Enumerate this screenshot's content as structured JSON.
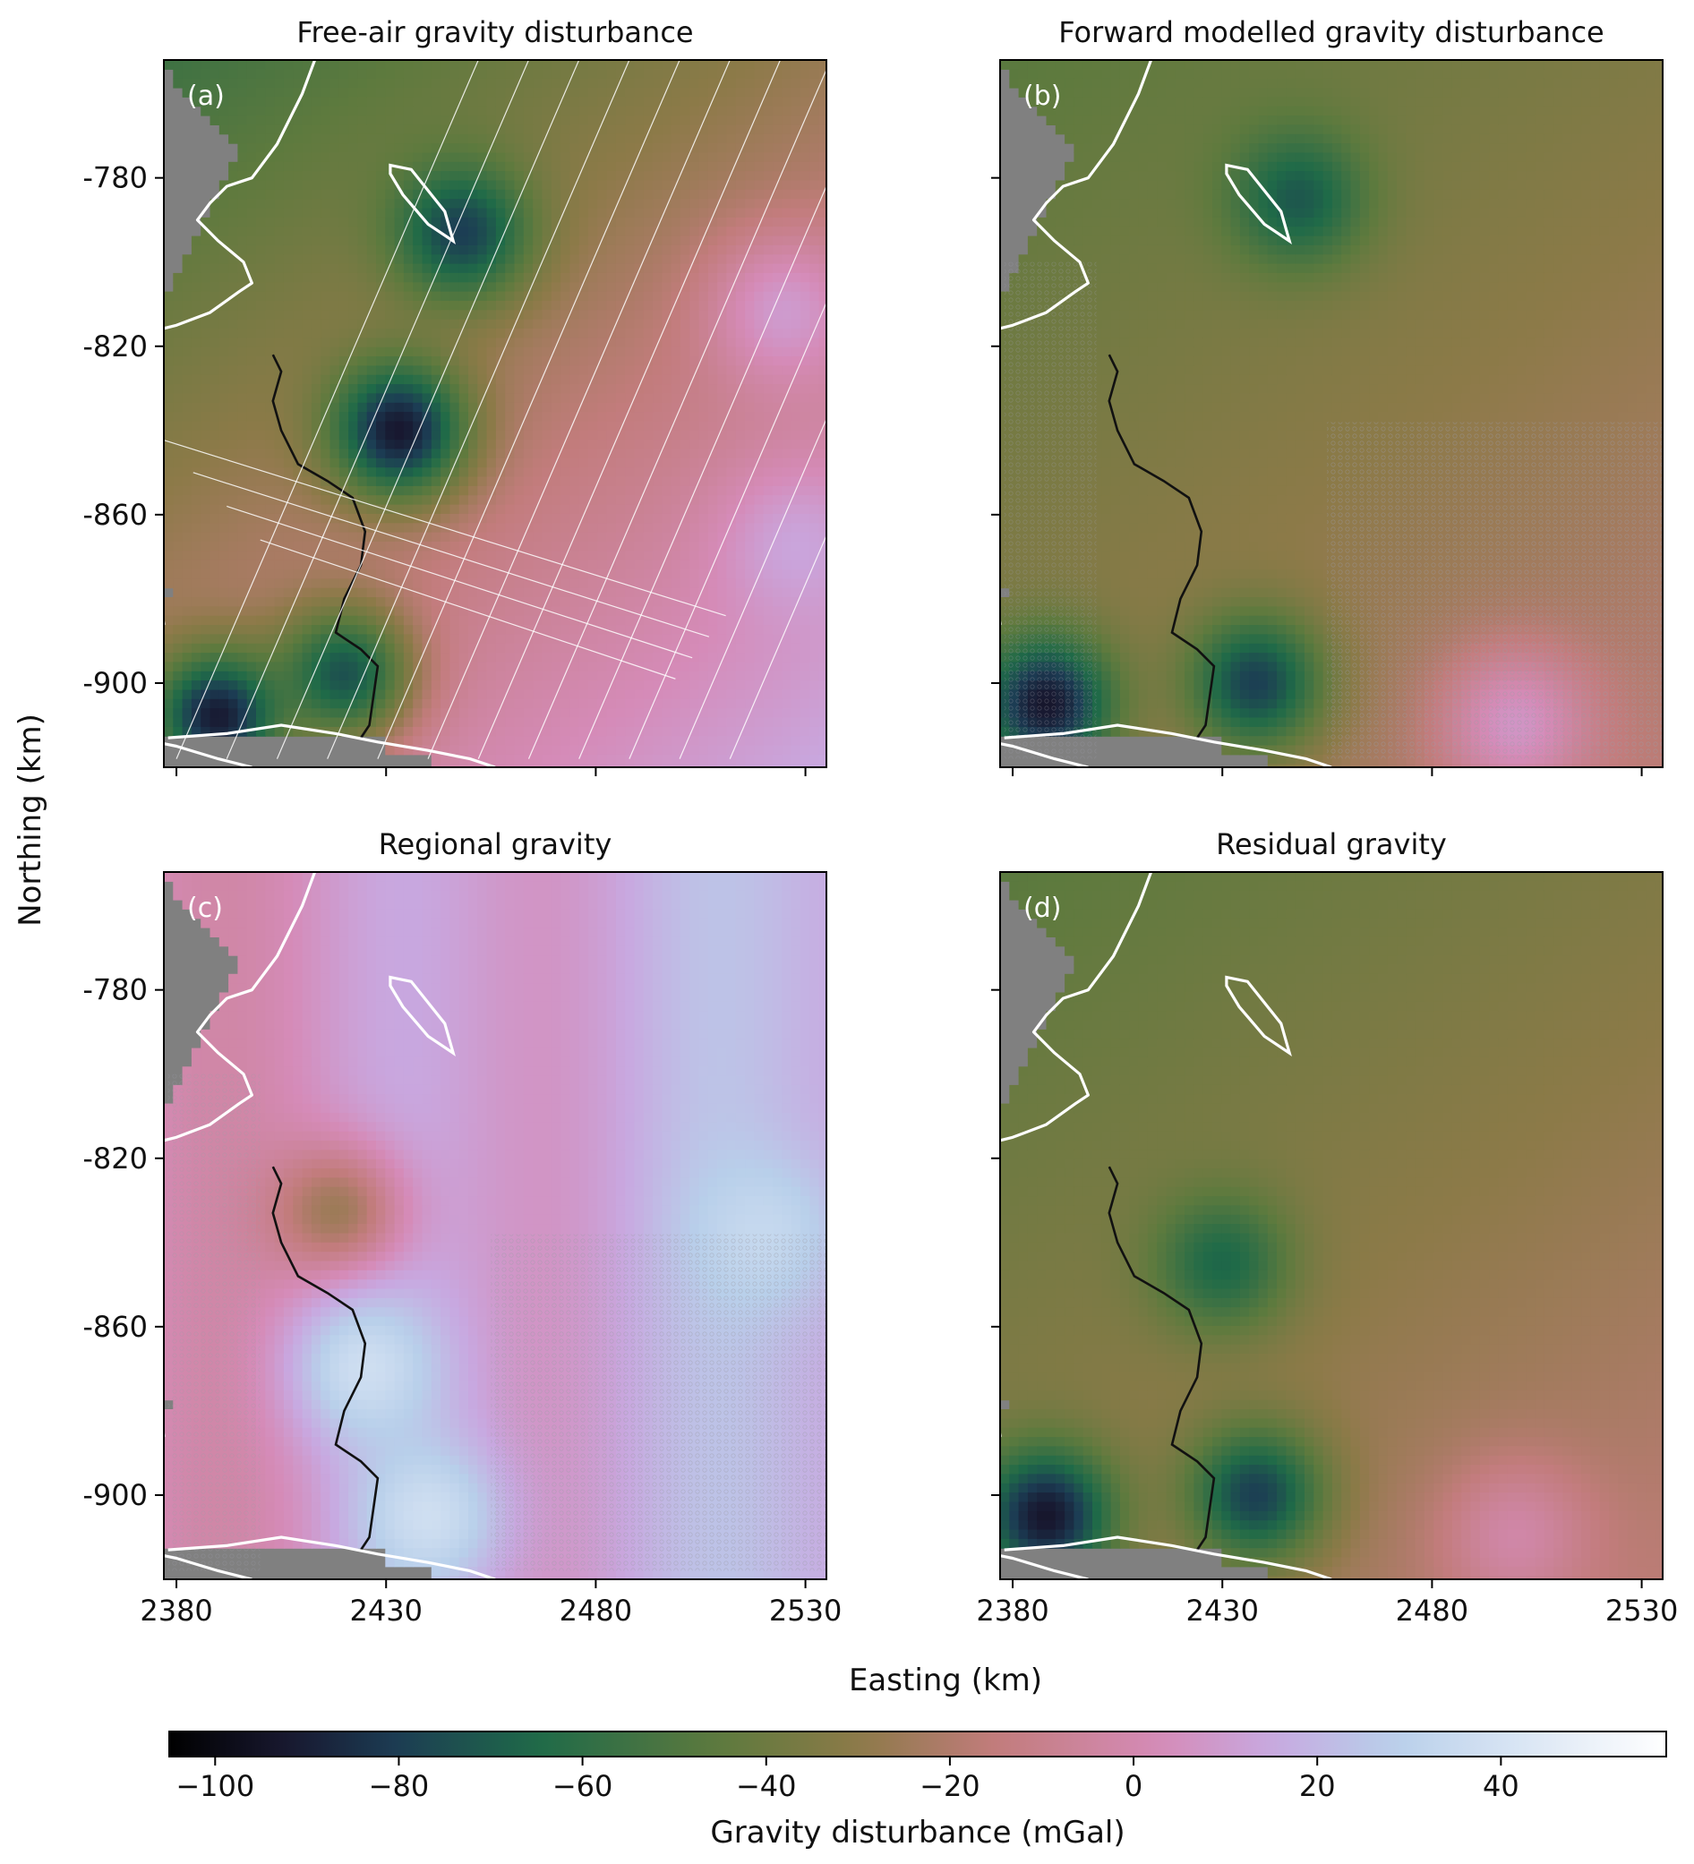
{
  "figure": {
    "shared_xlabel": "Easting (km)",
    "shared_ylabel": "Northing (km)",
    "colorbar": {
      "label": "Gravity disturbance (mGal)",
      "range": [
        -105,
        58
      ],
      "ticks": [
        "−100",
        "−80",
        "−60",
        "−40",
        "−20",
        "0",
        "20",
        "40"
      ],
      "tick_values": [
        -100,
        -80,
        -60,
        -40,
        -20,
        0,
        20,
        40
      ],
      "colormap_stops": [
        "#000000",
        "#181830",
        "#1c3d54",
        "#1f6a48",
        "#5e7a3e",
        "#8c7a48",
        "#c27c7c",
        "#d58bb8",
        "#c8a8e0",
        "#b8cfea",
        "#ffffff"
      ]
    }
  },
  "chart_data": [
    {
      "type": "heatmap",
      "title": "Free-air gravity disturbance",
      "panel_label": "(a)",
      "xlim": [
        2377,
        2535
      ],
      "ylim": [
        -920,
        -752
      ],
      "x_ticks": [
        "2380",
        "2430",
        "2480",
        "2530"
      ],
      "x_tick_values": [
        2380,
        2430,
        2480,
        2530
      ],
      "y_ticks": [
        "-780",
        "-820",
        "-860",
        "-900"
      ],
      "y_tick_values": [
        -780,
        -820,
        -860,
        -900
      ],
      "show_x_tick_labels": false,
      "show_y_tick_labels": true,
      "lows": [
        {
          "x": 2433,
          "y": -840,
          "value": -100
        },
        {
          "x": 2390,
          "y": -908,
          "value": -100
        },
        {
          "x": 2448,
          "y": -793,
          "value": -85
        },
        {
          "x": 2420,
          "y": -898,
          "value": -80
        }
      ],
      "highs": [
        {
          "x": 2528,
          "y": -868,
          "value": 15
        },
        {
          "x": 2525,
          "y": -812,
          "value": 12
        }
      ],
      "flight_lines": true,
      "data_points_overlay": false
    },
    {
      "type": "heatmap",
      "title": "Forward modelled gravity disturbance",
      "panel_label": "(b)",
      "xlim": [
        2377,
        2535
      ],
      "ylim": [
        -920,
        -752
      ],
      "x_ticks": [
        "2380",
        "2430",
        "2480",
        "2530"
      ],
      "x_tick_values": [
        2380,
        2430,
        2480,
        2530
      ],
      "y_ticks": [
        "-780",
        "-820",
        "-860",
        "-900"
      ],
      "y_tick_values": [
        -780,
        -820,
        -860,
        -900
      ],
      "show_x_tick_labels": false,
      "show_y_tick_labels": false,
      "lows": [
        {
          "x": 2388,
          "y": -905,
          "value": -100
        },
        {
          "x": 2438,
          "y": -900,
          "value": -85
        },
        {
          "x": 2448,
          "y": -785,
          "value": -75
        }
      ],
      "highs": [
        {
          "x": 2500,
          "y": -910,
          "value": 10
        }
      ],
      "flight_lines": false,
      "data_points_overlay": true
    },
    {
      "type": "heatmap",
      "title": "Regional gravity",
      "panel_label": "(c)",
      "xlim": [
        2377,
        2535
      ],
      "ylim": [
        -920,
        -752
      ],
      "x_ticks": [
        "2380",
        "2430",
        "2480",
        "2530"
      ],
      "x_tick_values": [
        2380,
        2430,
        2480,
        2530
      ],
      "y_ticks": [
        "-780",
        "-820",
        "-860",
        "-900"
      ],
      "y_tick_values": [
        -780,
        -820,
        -860,
        -900
      ],
      "show_x_tick_labels": true,
      "show_y_tick_labels": true,
      "lows": [
        {
          "x": 2418,
          "y": -833,
          "value": -30
        }
      ],
      "highs": [
        {
          "x": 2425,
          "y": -870,
          "value": 40
        },
        {
          "x": 2520,
          "y": -838,
          "value": 35
        },
        {
          "x": 2440,
          "y": -905,
          "value": 40
        }
      ],
      "flight_lines": false,
      "data_points_overlay": true
    },
    {
      "type": "heatmap",
      "title": "Residual gravity",
      "panel_label": "(d)",
      "xlim": [
        2377,
        2535
      ],
      "ylim": [
        -920,
        -752
      ],
      "x_ticks": [
        "2380",
        "2430",
        "2480",
        "2530"
      ],
      "x_tick_values": [
        2380,
        2430,
        2480,
        2530
      ],
      "y_ticks": [
        "-780",
        "-820",
        "-860",
        "-900"
      ],
      "y_tick_values": [
        -780,
        -820,
        -860,
        -900
      ],
      "show_x_tick_labels": true,
      "show_y_tick_labels": false,
      "lows": [
        {
          "x": 2388,
          "y": -905,
          "value": -100
        },
        {
          "x": 2438,
          "y": -900,
          "value": -85
        },
        {
          "x": 2430,
          "y": -845,
          "value": -70
        }
      ],
      "highs": [
        {
          "x": 2500,
          "y": -910,
          "value": 0
        }
      ],
      "flight_lines": false,
      "data_points_overlay": false
    }
  ]
}
